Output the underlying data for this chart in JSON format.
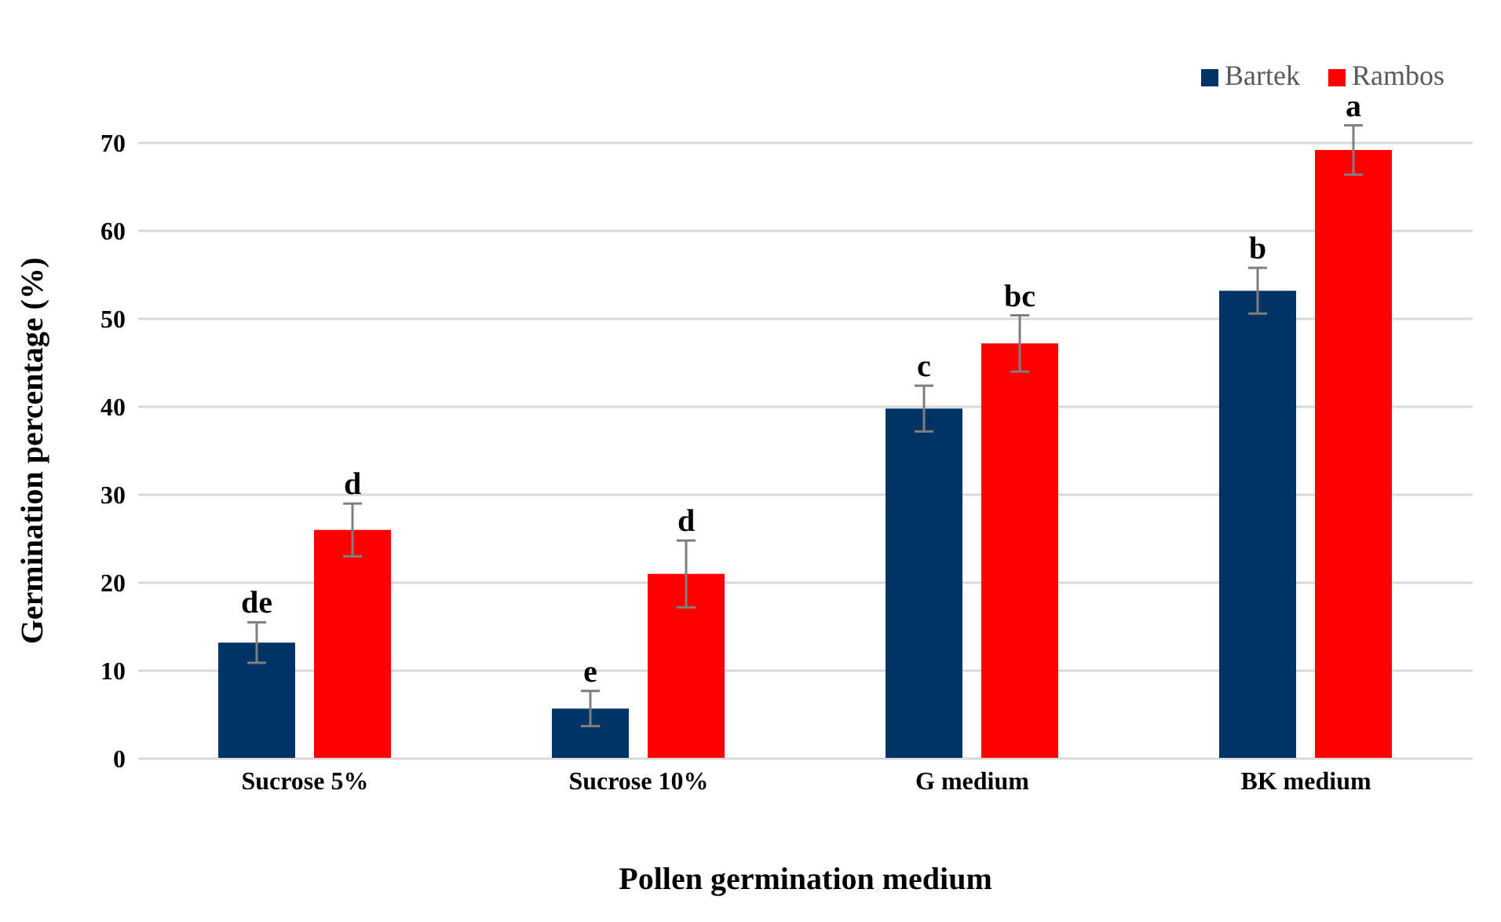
{
  "chart_data": {
    "type": "bar",
    "xlabel": "Pollen germination medium",
    "ylabel": "Germination percentage (%)",
    "categories": [
      "Sucrose 5%",
      "Sucrose 10%",
      "G medium",
      "BK medium"
    ],
    "series": [
      {
        "name": "Bartek",
        "color": "#003366",
        "values": [
          13.2,
          5.7,
          39.8,
          53.2
        ],
        "errors": [
          2.3,
          2,
          2.6,
          2.6
        ]
      },
      {
        "name": "Rambos",
        "color": "#ff0000",
        "values": [
          26,
          21,
          47.2,
          69.2
        ],
        "errors": [
          3,
          3.8,
          3.2,
          2.8
        ]
      }
    ],
    "ylim": [
      0,
      70
    ],
    "yticks": [
      0,
      10,
      20,
      30,
      40,
      50,
      60,
      70
    ],
    "grid": "y",
    "legend": "top right",
    "annotations": [
      "de",
      "d",
      "e",
      "d",
      "c",
      "bc",
      "b",
      "a"
    ]
  }
}
